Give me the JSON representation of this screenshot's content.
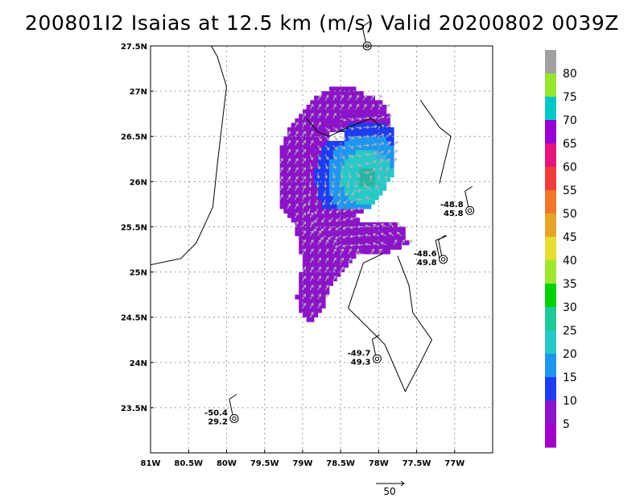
{
  "title": "200801I2 Isaias at 12.5 km (m/s) Valid 20200802 0039Z",
  "chart_data": {
    "type": "wind-vector map",
    "lon_range": [
      -81,
      -76.5
    ],
    "lat_range": [
      23,
      27.5
    ],
    "x_ticks": [
      "81W",
      "80.5W",
      "80W",
      "79.5W",
      "79W",
      "78.5W",
      "78W",
      "77.5W",
      "77W"
    ],
    "x_tick_values": [
      -81,
      -80.5,
      -80,
      -79.5,
      -79,
      -78.5,
      -78,
      -77.5,
      -77
    ],
    "y_ticks": [
      "27.5N",
      "27N",
      "26.5N",
      "26N",
      "25.5N",
      "25N",
      "24.5N",
      "24N",
      "23.5N"
    ],
    "y_tick_values": [
      27.5,
      27,
      26.5,
      26,
      25.5,
      25,
      24.5,
      24,
      23.5
    ],
    "grid": true,
    "colorbar": {
      "labels": [
        "80",
        "75",
        "70",
        "65",
        "60",
        "55",
        "50",
        "45",
        "40",
        "35",
        "30",
        "25",
        "20",
        "15",
        "10",
        "5"
      ],
      "colors": [
        "#a0a0a0",
        "#96e632",
        "#00c8c8",
        "#9600d2",
        "#e6147d",
        "#f03c3c",
        "#f07828",
        "#e6a528",
        "#e6dc32",
        "#a0e632",
        "#00d200",
        "#1ec896",
        "#28c8c8",
        "#1e96f0",
        "#1e3cf0",
        "#8c14c8",
        "#a000c8"
      ]
    },
    "center_low_wind": {
      "lon": -78.2,
      "lat": 26.0
    },
    "stations": [
      {
        "lon": -78.15,
        "lat": 27.5,
        "labels": []
      },
      {
        "lon": -76.8,
        "lat": 25.68,
        "labels": [
          "-48.8",
          "45.8"
        ]
      },
      {
        "lon": -77.15,
        "lat": 25.14,
        "labels": [
          "-48.6",
          "49.8"
        ]
      },
      {
        "lon": -78.02,
        "lat": 24.04,
        "labels": [
          "-49.7",
          "49.3"
        ]
      },
      {
        "lon": -79.9,
        "lat": 23.38,
        "labels": [
          "-50.4",
          "29.2"
        ]
      }
    ],
    "reference_vector": {
      "label": "50"
    }
  }
}
